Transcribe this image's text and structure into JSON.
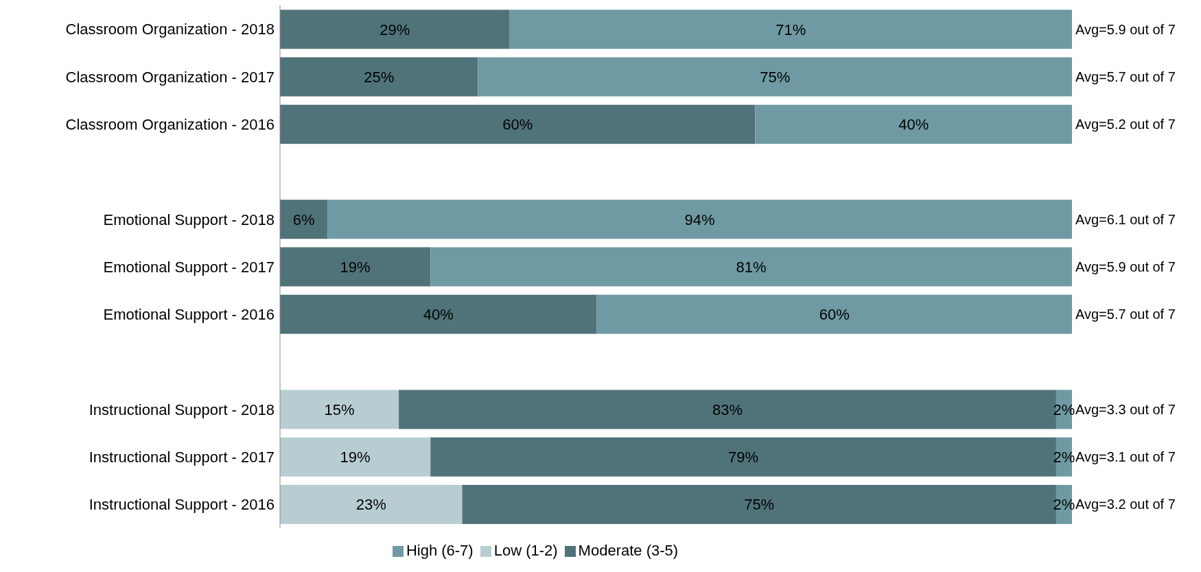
{
  "chart_data": {
    "type": "bar",
    "orientation": "horizontal",
    "stacked": true,
    "legend": "bottom",
    "categories": [
      "Classroom Organization - 2018",
      "Classroom Organization - 2017",
      "Classroom Organization - 2016",
      null,
      "Emotional Support - 2018",
      "Emotional Support - 2017",
      "Emotional Support - 2016",
      null,
      "Instructional Support - 2018",
      "Instructional Support - 2017",
      "Instructional Support - 2016"
    ],
    "series": [
      {
        "name": "Low (1-2)",
        "color": "#b8cdd2",
        "values": [
          null,
          null,
          null,
          null,
          null,
          null,
          null,
          null,
          15,
          19,
          23
        ],
        "value_labels": [
          null,
          null,
          null,
          null,
          null,
          null,
          null,
          null,
          "15%",
          "19%",
          "23%"
        ]
      },
      {
        "name": "Moderate (3-5)",
        "color": "#50737a",
        "values": [
          29,
          25,
          60,
          null,
          6,
          19,
          40,
          null,
          83,
          79,
          75
        ],
        "value_labels": [
          "29%",
          "25%",
          "60%",
          null,
          "6%",
          "19%",
          "40%",
          null,
          "83%",
          "79%",
          "75%"
        ]
      },
      {
        "name": "High (6-7)",
        "color": "#6f9aa3",
        "values": [
          71,
          75,
          40,
          null,
          94,
          81,
          60,
          null,
          2,
          2,
          2
        ],
        "value_labels": [
          "71%",
          "75%",
          "40%",
          null,
          "94%",
          "81%",
          "60%",
          null,
          "2%",
          "2%",
          "2%"
        ]
      }
    ],
    "annotations": [
      "Avg=5.9 out of 7",
      "Avg=5.7 out of 7",
      "Avg=5.2 out of 7",
      "Avg=6.1 out of 7",
      "Avg=5.9 out of 7",
      "Avg=5.7 out of 7",
      "Avg=3.3 out of 7",
      "Avg=3.1 out of 7",
      "Avg=3.2 out of 7"
    ]
  }
}
